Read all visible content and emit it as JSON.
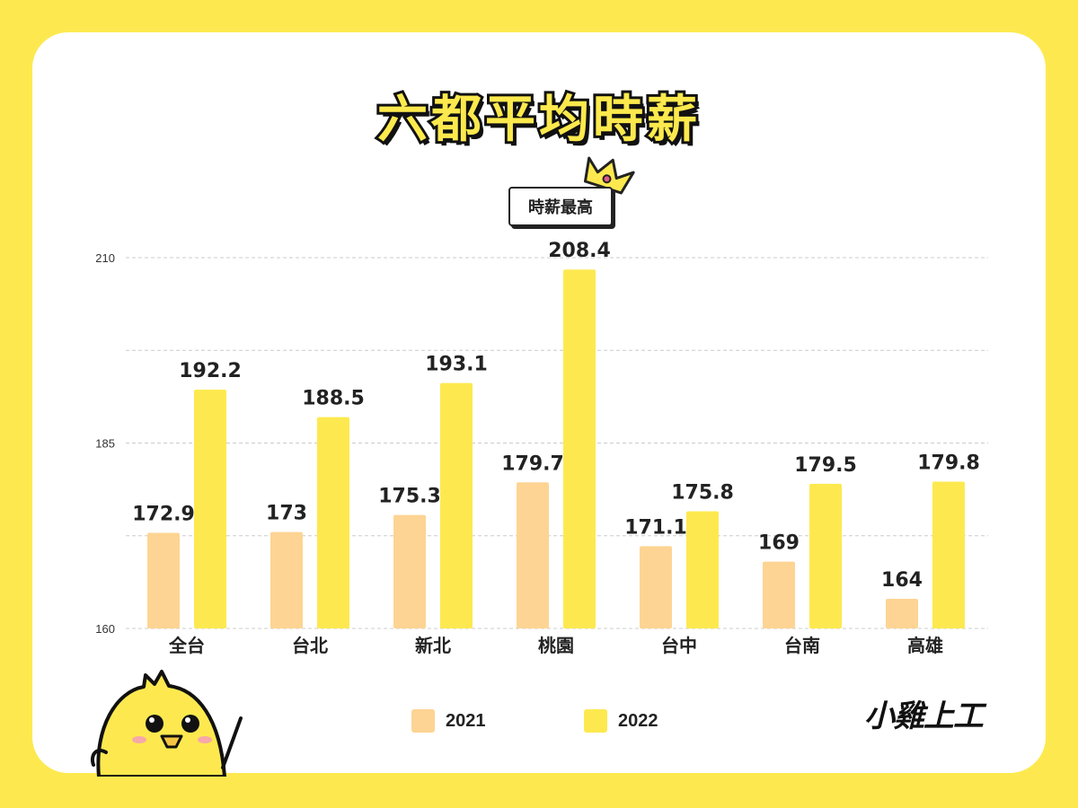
{
  "title": "六都平均時薪",
  "badge": "時薪最高",
  "logo": {
    "part1": "小",
    "part2": "雞",
    "part3": "上工"
  },
  "colors": {
    "y2021": "#fdd493",
    "y2022": "#fde94f",
    "background": "#fde94f"
  },
  "chart_data": {
    "type": "bar",
    "categories": [
      "全台",
      "台北",
      "新北",
      "桃園",
      "台中",
      "台南",
      "高雄"
    ],
    "series": [
      {
        "name": "2021",
        "values": [
          172.9,
          173,
          175.3,
          179.7,
          171.1,
          169,
          164
        ],
        "labels": [
          "172.9",
          "173",
          "175.3",
          "179.7",
          "171.1",
          "169",
          "164"
        ]
      },
      {
        "name": "2022",
        "values": [
          192.2,
          188.5,
          193.1,
          208.4,
          175.8,
          179.5,
          179.8
        ],
        "labels": [
          "192.2",
          "188.5",
          "193.1",
          "208.4",
          "175.8",
          "179.5",
          "179.8"
        ]
      }
    ],
    "title": "六都平均時薪",
    "ylim": [
      160,
      210
    ],
    "yticks": [
      "160",
      "185",
      "210"
    ],
    "grid": true,
    "legend_position": "bottom"
  }
}
